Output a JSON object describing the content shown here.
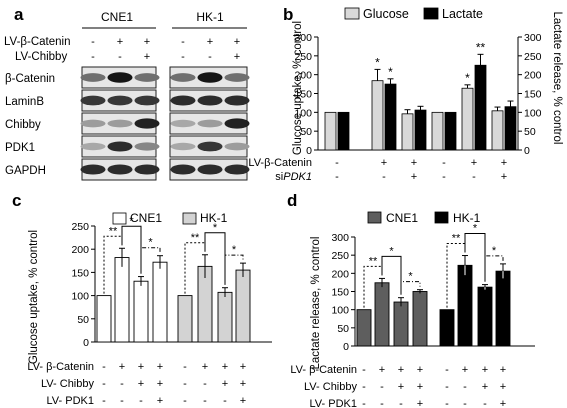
{
  "panels": {
    "a": {
      "letter": "a",
      "cell_lines": [
        "CNE1",
        "HK-1"
      ],
      "treatments": [
        {
          "label": "LV-β-Catenin",
          "values": [
            "-",
            "+",
            "+",
            "-",
            "+",
            "+"
          ]
        },
        {
          "label": "LV-Chibby",
          "values": [
            "-",
            "-",
            "+",
            "-",
            "-",
            "+"
          ]
        }
      ],
      "proteins": [
        "β-Catenin",
        "LaminB",
        "Chibby",
        "PDK1",
        "GAPDH"
      ],
      "band_intensity": [
        [
          [
            0.55,
            0.95,
            0.55
          ],
          [
            0.55,
            0.95,
            0.55
          ]
        ],
        [
          [
            0.8,
            0.8,
            0.8
          ],
          [
            0.85,
            0.85,
            0.85
          ]
        ],
        [
          [
            0.35,
            0.35,
            0.9
          ],
          [
            0.3,
            0.35,
            0.9
          ]
        ],
        [
          [
            0.3,
            0.85,
            0.45
          ],
          [
            0.3,
            0.8,
            0.35
          ]
        ],
        [
          [
            0.85,
            0.85,
            0.85
          ],
          [
            0.85,
            0.85,
            0.85
          ]
        ]
      ]
    },
    "b": {
      "letter": "b",
      "chart_data": {
        "type": "bar",
        "series": [
          {
            "name": "Glucose",
            "color": "#d9d9d9",
            "values": [
              100,
              184,
              96,
              100,
              164,
              104
            ],
            "errors": [
              0,
              30,
              11,
              0,
              9,
              10
            ]
          },
          {
            "name": "Lactate",
            "color": "#000000",
            "values": [
              100,
              175,
              106,
              100,
              225,
              115
            ],
            "errors": [
              0,
              14,
              10,
              0,
              29,
              15
            ]
          }
        ],
        "significance": [
          "",
          "*",
          "",
          "",
          "*",
          ""
        ],
        "significance_lactate": [
          "",
          "*",
          "",
          "",
          "**",
          ""
        ],
        "ylabel_left": "Glucose uptake, % control",
        "ylabel_right": "Lactate release, % control",
        "ylim": [
          0,
          300
        ],
        "yticks": [
          0,
          50,
          100,
          150,
          200,
          250,
          300
        ],
        "row_labels": [
          {
            "prefix": "LV-β-Catenin",
            "italic": "",
            "values": [
              "-",
              "+",
              "+",
              "-",
              "+",
              "+"
            ]
          },
          {
            "prefix": "si",
            "italic": "PDK1",
            "values": [
              "-",
              "-",
              "+",
              "-",
              "-",
              "+"
            ]
          }
        ],
        "legend_position": "top"
      }
    },
    "c": {
      "letter": "c",
      "chart_data": {
        "type": "bar",
        "groups": [
          {
            "name": "CNE1",
            "color": "#ffffff",
            "values": [
              100,
              182,
              131,
              172
            ],
            "errors": [
              0,
              20,
              10,
              14
            ]
          },
          {
            "name": "HK-1",
            "color": "#d3d3d3",
            "values": [
              100,
              163,
              107,
              155
            ],
            "errors": [
              0,
              25,
              10,
              15
            ]
          }
        ],
        "ylabel": "Glucose uptake, % control",
        "ylim": [
          0,
          250
        ],
        "yticks": [
          0,
          50,
          100,
          150,
          200,
          250
        ],
        "row_labels": [
          {
            "label": "LV- β-Catenin",
            "values": [
              "-",
              "+",
              "+",
              "+",
              "-",
              "+",
              "+",
              "+"
            ]
          },
          {
            "label": "LV- Chibby",
            "values": [
              "-",
              "-",
              "+",
              "+",
              "-",
              "-",
              "+",
              "+"
            ]
          },
          {
            "label": "LV- PDK1",
            "values": [
              "-",
              "-",
              "-",
              "+",
              "-",
              "-",
              "-",
              "+"
            ]
          }
        ],
        "brackets": [
          "**",
          "*",
          "*"
        ],
        "legend_position": "top"
      }
    },
    "d": {
      "letter": "d",
      "chart_data": {
        "type": "bar",
        "groups": [
          {
            "name": "CNE1",
            "color": "#5e5e5e",
            "values": [
              100,
              174,
              121,
              150
            ],
            "errors": [
              0,
              12,
              12,
              5
            ]
          },
          {
            "name": "HK-1",
            "color": "#000000",
            "values": [
              100,
              222,
              162,
              206
            ],
            "errors": [
              0,
              27,
              7,
              20
            ]
          }
        ],
        "ylabel": "Lactate release, % control",
        "ylim": [
          0,
          300
        ],
        "yticks": [
          0,
          50,
          100,
          150,
          200,
          250,
          300
        ],
        "row_labels": [
          {
            "label": "LV- β-Catenin",
            "values": [
              "-",
              "+",
              "+",
              "+",
              "-",
              "+",
              "+",
              "+"
            ]
          },
          {
            "label": "LV- Chibby",
            "values": [
              "-",
              "-",
              "+",
              "+",
              "-",
              "-",
              "+",
              "+"
            ]
          },
          {
            "label": "LV- PDK1",
            "values": [
              "-",
              "-",
              "-",
              "+",
              "-",
              "-",
              "-",
              "+"
            ]
          }
        ],
        "brackets": [
          "**",
          "*",
          "*"
        ],
        "legend_position": "top"
      }
    }
  }
}
